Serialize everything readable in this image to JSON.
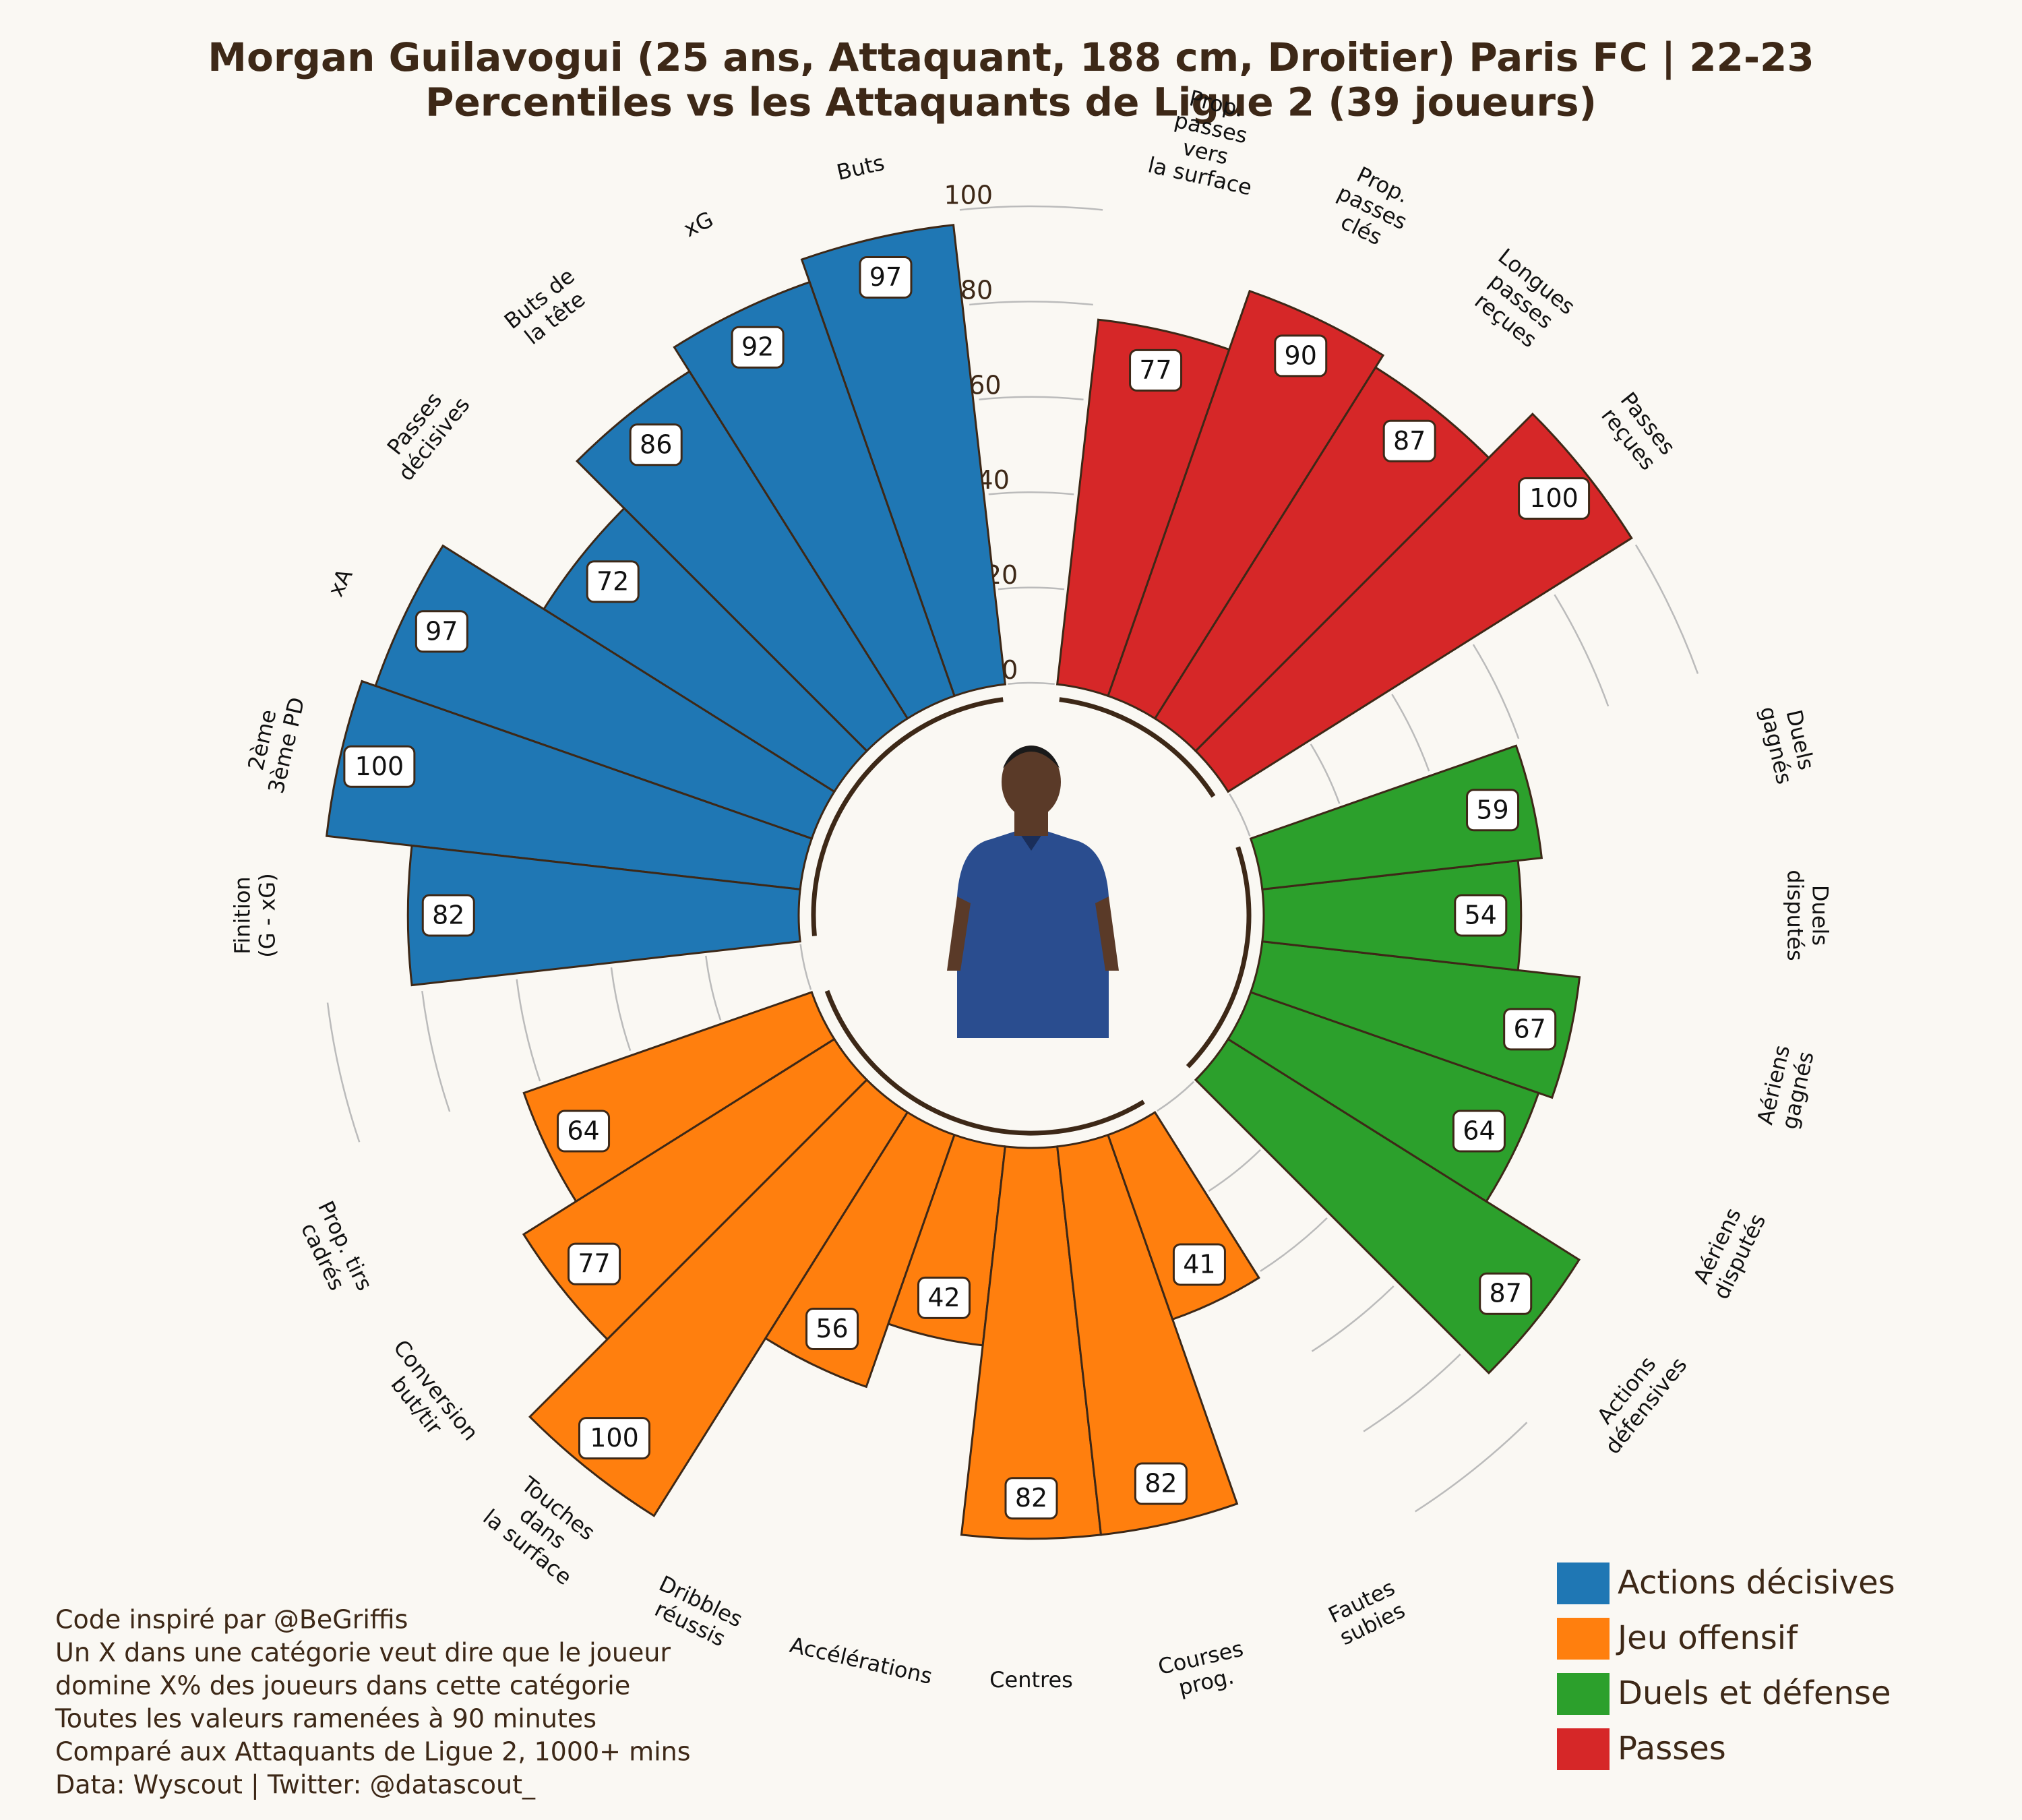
{
  "chart_data": {
    "type": "polar",
    "title": "Morgan Guilavogui (25 ans, Attaquant, 188 cm, Droitier) Paris FC | 22-23\nPercentiles vs les Attaquants de Ligue 2 (39 joueurs)",
    "series": [
      {
        "name": "Actions décisives",
        "color": "#1f77b4",
        "categories": [
          "Buts",
          "xG",
          "Buts de\nla tête",
          "Passes\ndécisives",
          "xA",
          "2ème\n3ème PD",
          "Finition\n(G - xG)"
        ],
        "values": [
          97,
          92,
          86,
          72,
          97,
          100,
          82
        ]
      },
      {
        "name": "Jeu offensif",
        "color": "#ff7f0e",
        "categories": [
          "Prop. tirs\ncadrés",
          "Conversion\nbut/tir",
          "Touches\ndans\nla surface",
          "Dribbles\nréussis",
          "Accélérations",
          "Centres",
          "Courses\nprog.",
          "Fautes\nsubies"
        ],
        "values": [
          64,
          77,
          100,
          56,
          42,
          82,
          82,
          41
        ]
      },
      {
        "name": "Duels et défense",
        "color": "#2ca02c",
        "categories": [
          "Actions\ndéfensives",
          "Aériens\ndisputés",
          "Aériens\ngagnés",
          "Duels\ndisputés",
          "Duels\ngagnés"
        ],
        "values": [
          87,
          64,
          67,
          54,
          59
        ]
      },
      {
        "name": "Passes",
        "color": "#d62728",
        "categories": [
          "Passes\nreçues",
          "Longues\npasses\nreçues",
          "Prop.\npasses\nclés",
          "Prop.\npasses\nvers\nla surface"
        ],
        "values": [
          100,
          87,
          90,
          77
        ]
      }
    ],
    "rlim": [
      0,
      100
    ],
    "rticks": [
      0,
      20,
      40,
      60,
      80,
      100
    ],
    "grid": true,
    "legend": "lower right",
    "notes": [
      "Code inspiré par @BeGriffis",
      "Un X dans une catégorie veut dire que le joueur",
      "domine X% des joueurs dans cette catégorie",
      "Toutes les valeurs ramenées à 90 minutes",
      "Comparé aux Attaquants de Ligue 2, 1000+ mins",
      "Data: Wyscout | Twitter: @datascout_"
    ]
  }
}
